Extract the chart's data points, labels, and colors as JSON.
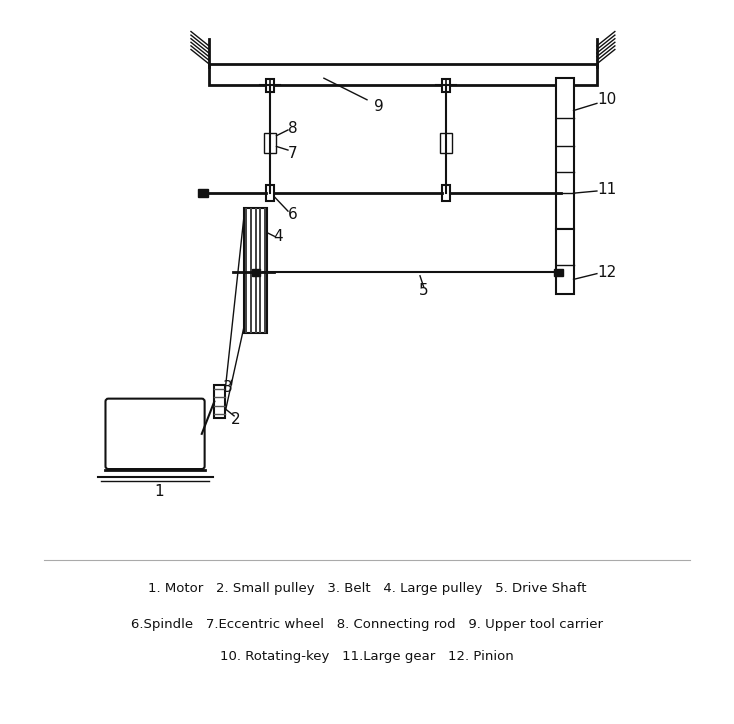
{
  "bg_color": "#ffffff",
  "line_color": "#111111",
  "legend_text": [
    "1. Motor   2. Small pulley   3. Belt   4. Large pulley   5. Drive Shaft",
    "6.Spindle   7.Eccentric wheel   8. Connecting rod   9. Upper tool carrier",
    "10. Rotating-key   11.Large gear   12. Pinion"
  ],
  "figsize": [
    7.34,
    7.24
  ],
  "dpi": 100
}
